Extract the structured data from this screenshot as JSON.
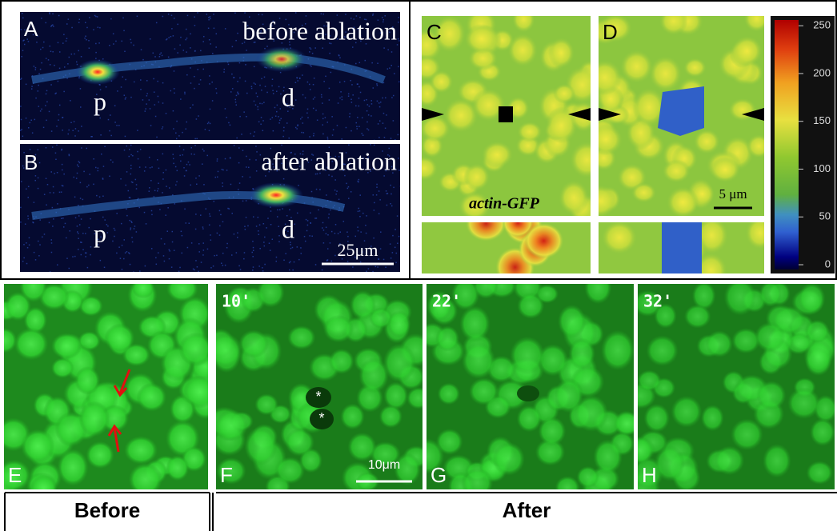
{
  "panel_a": {
    "label": "A",
    "caption": "before ablation",
    "marks": [
      "p",
      "d"
    ]
  },
  "panel_b": {
    "label": "B",
    "caption": "after ablation",
    "marks": [
      "p",
      "d"
    ],
    "scale_bar": "25μm"
  },
  "panel_c": {
    "label": "C",
    "caption": "actin-GFP"
  },
  "panel_d": {
    "label": "D",
    "scale_bar": "5 μm"
  },
  "colorbar": {
    "lim": [
      -5,
      256
    ],
    "ticks": [
      0,
      50,
      100,
      150,
      200,
      250
    ]
  },
  "panel_e": {
    "label": "E"
  },
  "panel_f": {
    "label": "F",
    "time": "10'",
    "asterisks": [
      "*",
      "*"
    ],
    "scale_bar": "10μm"
  },
  "panel_g": {
    "label": "G",
    "time": "22'"
  },
  "panel_h": {
    "label": "H",
    "time": "32'"
  },
  "footer": {
    "before": "Before",
    "after": "After"
  }
}
